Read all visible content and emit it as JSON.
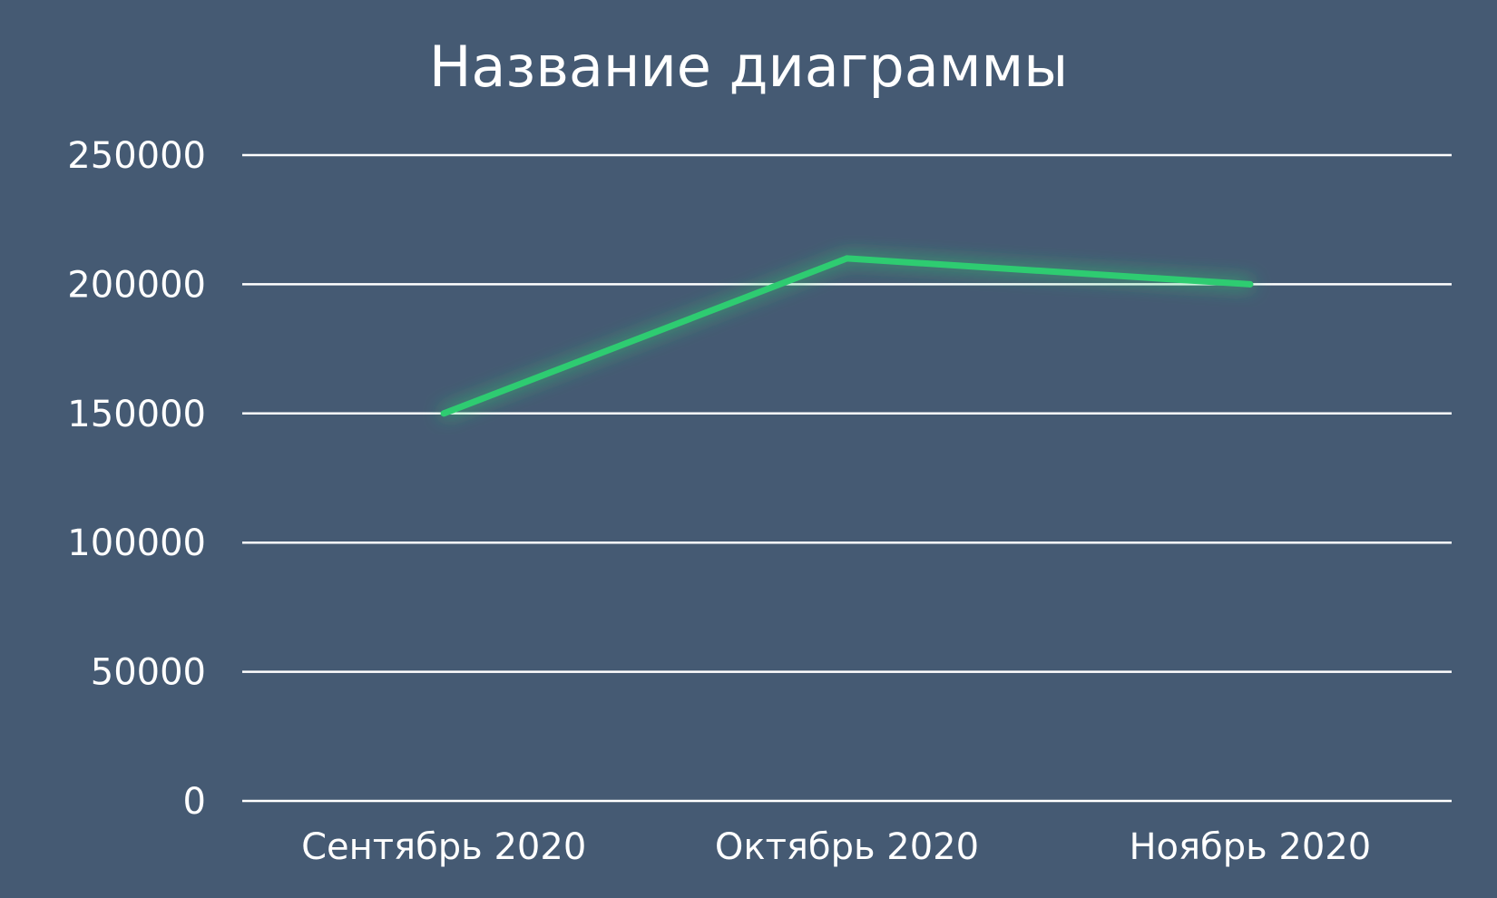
{
  "chart_data": {
    "type": "line",
    "title": "Название диаграммы",
    "xlabel": "",
    "ylabel": "",
    "categories": [
      "Сентябрь 2020",
      "Октябрь 2020",
      "Ноябрь 2020"
    ],
    "series": [
      {
        "values": [
          150000,
          210000,
          200000
        ],
        "color": "#2ecc71"
      }
    ],
    "ylim": [
      0,
      250000
    ],
    "yticks": [
      "0",
      "50000",
      "100000",
      "150000",
      "200000",
      "250000"
    ],
    "grid": true,
    "legend": "none"
  },
  "colors": {
    "background": "#455a73",
    "text": "#ffffff",
    "gridline": "#ffffff",
    "line": "#2ecc71"
  }
}
